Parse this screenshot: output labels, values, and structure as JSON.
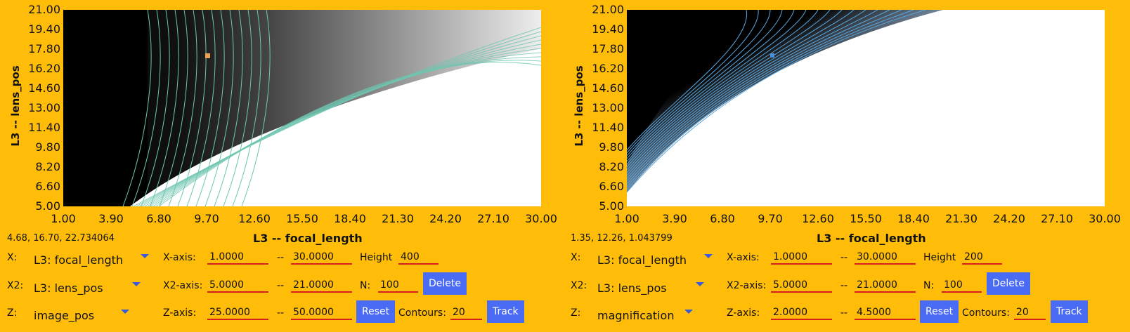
{
  "colors": {
    "background": "#FFBD0A",
    "button": "#4a6cf4",
    "field_underline": "#d62020"
  },
  "panels": [
    {
      "y_ticks": [
        "21.00",
        "19.40",
        "17.80",
        "16.20",
        "14.60",
        "13.00",
        "11.40",
        "9.80",
        "8.20",
        "6.60",
        "5.00"
      ],
      "x_ticks": [
        "1.00",
        "3.90",
        "6.80",
        "9.70",
        "12.60",
        "15.50",
        "18.40",
        "21.30",
        "24.20",
        "27.10",
        "30.00"
      ],
      "x_title": "L3 -- focal_length",
      "y_title": "L3 -- lens_pos",
      "readout": "4.68, 16.70, 22.734064",
      "x_label": "X:",
      "x_value": "L3: focal_length",
      "x2_label": "X2:",
      "x2_value": "L3: lens_pos",
      "z_label": "Z:",
      "z_value": "image_pos",
      "xaxis_label": "X-axis:",
      "xaxis_min": "1.0000",
      "xaxis_max": "30.0000",
      "x2axis_label": "X2-axis:",
      "x2axis_min": "5.0000",
      "x2axis_max": "21.0000",
      "zaxis_label": "Z-axis:",
      "zaxis_min": "25.0000",
      "zaxis_max": "50.0000",
      "dash": "--",
      "height_label": "Height",
      "height_value": "400",
      "n_label": "N:",
      "n_value": "100",
      "contours_label": "Contours:",
      "contours_value": "20",
      "delete_label": "Delete",
      "reset_label": "Reset",
      "track_label": "Track",
      "marker_color": "#e8a355",
      "contour_color": "#6ec6b0"
    },
    {
      "y_ticks": [
        "21.00",
        "19.40",
        "17.80",
        "16.20",
        "14.60",
        "13.00",
        "11.40",
        "9.80",
        "8.20",
        "6.60",
        "5.00"
      ],
      "x_ticks": [
        "1.00",
        "3.90",
        "6.80",
        "9.70",
        "12.60",
        "15.50",
        "18.40",
        "21.30",
        "24.20",
        "27.10",
        "30.00"
      ],
      "x_title": "L3 -- focal_length",
      "y_title": "L3 -- lens_pos",
      "readout": "1.35, 12.26, 1.043799",
      "x_label": "X:",
      "x_value": "L3: focal_length",
      "x2_label": "X2:",
      "x2_value": "L3: lens_pos",
      "z_label": "Z:",
      "z_value": "magnification",
      "xaxis_label": "X-axis:",
      "xaxis_min": "1.0000",
      "xaxis_max": "30.0000",
      "x2axis_label": "X2-axis:",
      "x2axis_min": "5.0000",
      "x2axis_max": "21.0000",
      "zaxis_label": "Z-axis:",
      "zaxis_min": "2.0000",
      "zaxis_max": "4.5000",
      "dash": "--",
      "height_label": "Height",
      "height_value": "200",
      "n_label": "N:",
      "n_value": "100",
      "contours_label": "Contours:",
      "contours_value": "20",
      "delete_label": "Delete",
      "reset_label": "Reset",
      "track_label": "Track",
      "marker_color": "#4a90d9",
      "contour_color": "#5aa8e0"
    }
  ]
}
